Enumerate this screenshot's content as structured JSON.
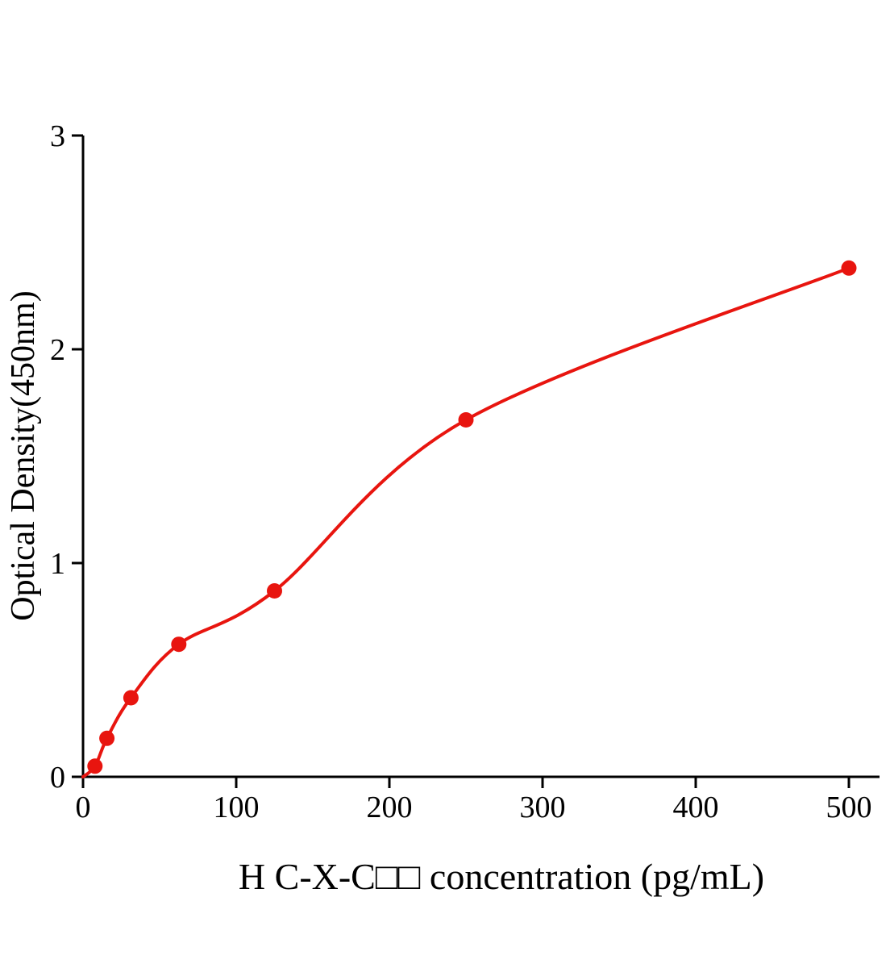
{
  "figure": {
    "background_color": "#ffffff"
  },
  "chart_data": {
    "type": "scatter",
    "title": "",
    "xlabel": "H C-X-C□□ concentration (pg/mL)",
    "ylabel": "Optical Density(450nm)",
    "points": {
      "x": [
        7.8,
        15.6,
        31.25,
        62.5,
        125,
        250,
        500
      ],
      "y": [
        0.05,
        0.18,
        0.37,
        0.62,
        0.87,
        1.67,
        2.38
      ]
    },
    "curve": {
      "description": "smooth fitted standard curve through all points, starting at origin",
      "start": [
        0,
        0
      ],
      "end": [
        500,
        2.38
      ]
    },
    "xlim": [
      0,
      520
    ],
    "ylim": [
      0,
      3
    ],
    "xticks": [
      0,
      100,
      200,
      300,
      400,
      500
    ],
    "yticks": [
      0,
      1,
      2,
      3
    ],
    "grid": false,
    "legend": "none",
    "colors": {
      "points": "#e8150f",
      "curve": "#e8150f",
      "axis": "#000000"
    }
  }
}
